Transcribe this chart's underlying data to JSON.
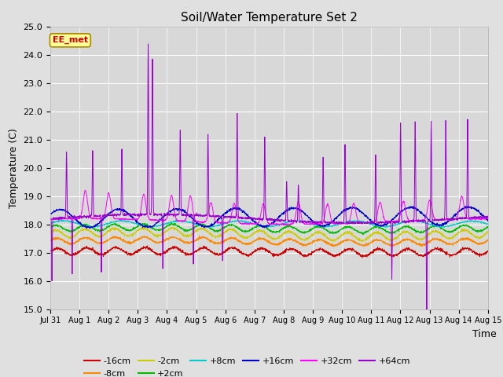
{
  "title": "Soil/Water Temperature Set 2",
  "xlabel": "Time",
  "ylabel": "Temperature (C)",
  "ylim": [
    15.0,
    25.0
  ],
  "yticks": [
    15.0,
    16.0,
    17.0,
    18.0,
    19.0,
    20.0,
    21.0,
    22.0,
    23.0,
    24.0,
    25.0
  ],
  "background_color": "#e0e0e0",
  "plot_bg_color": "#d8d8d8",
  "series": [
    {
      "label": "-16cm",
      "color": "#cc0000",
      "base": 17.03,
      "amp": 0.12,
      "phase": 0.0
    },
    {
      "label": "-8cm",
      "color": "#ff8800",
      "base": 17.4,
      "amp": 0.2,
      "phase": 0.2
    },
    {
      "label": "-2cm",
      "color": "#cccc00",
      "base": 17.65,
      "amp": 0.28,
      "phase": 0.4
    },
    {
      "label": "+2cm",
      "color": "#00bb00",
      "base": 17.85,
      "amp": 0.22,
      "phase": 0.35
    },
    {
      "label": "+8cm",
      "color": "#00cccc",
      "base": 18.02,
      "amp": 0.1,
      "phase": 0.15
    },
    {
      "label": "+16cm",
      "color": "#0000cc",
      "base": 18.2,
      "amp": 0.32,
      "phase": 0.5
    },
    {
      "label": "+32cm",
      "color": "#ff00ff",
      "base": 18.1,
      "amp": 0.7,
      "phase": 1.0
    },
    {
      "label": "+64cm",
      "color": "#9900cc",
      "base": 18.2,
      "amp": 0.2,
      "phase": 0.0
    }
  ],
  "xtick_labels": [
    "Jul 31",
    "Aug 1",
    "Aug 2",
    "Aug 3",
    "Aug 4",
    "Aug 5",
    "Aug 6",
    "Aug 7",
    "Aug 8",
    "Aug 9",
    "Aug 10",
    "Aug 11",
    "Aug 12",
    "Aug 13",
    "Aug 14",
    "Aug 15"
  ],
  "n_days": 15,
  "pts_per_day": 144,
  "annotation_text": "EE_met",
  "annotation_bg": "#ffff99",
  "annotation_border": "#aa8800",
  "spike64_up": [
    0.55,
    1.45,
    2.45,
    3.35,
    3.5,
    4.45,
    5.4,
    6.4,
    7.35,
    8.1,
    8.5,
    9.35,
    10.1,
    11.15,
    12.0,
    12.5,
    13.05,
    13.55,
    14.3
  ],
  "spike64_heights": [
    2.3,
    2.3,
    2.3,
    6.0,
    5.5,
    3.0,
    2.9,
    3.7,
    2.9,
    1.4,
    1.3,
    2.3,
    2.8,
    2.4,
    3.5,
    3.5,
    3.5,
    3.5,
    3.5
  ],
  "trough64": [
    0.05,
    0.75,
    1.75,
    3.85,
    4.9,
    5.9,
    11.7,
    12.9
  ],
  "trough64_depths": [
    2.2,
    2.0,
    2.0,
    1.9,
    1.7,
    1.6,
    2.0,
    3.7
  ],
  "spike32_up": [
    1.2,
    2.0,
    3.2,
    4.15,
    4.8,
    5.5,
    6.3,
    7.3,
    8.5,
    9.5,
    10.4,
    11.3,
    12.1,
    13.0,
    14.1
  ],
  "spike32_heights": [
    1.0,
    0.9,
    0.9,
    0.9,
    0.9,
    0.7,
    0.7,
    0.7,
    0.8,
    0.7,
    0.7,
    0.7,
    0.7,
    0.7,
    0.8
  ]
}
